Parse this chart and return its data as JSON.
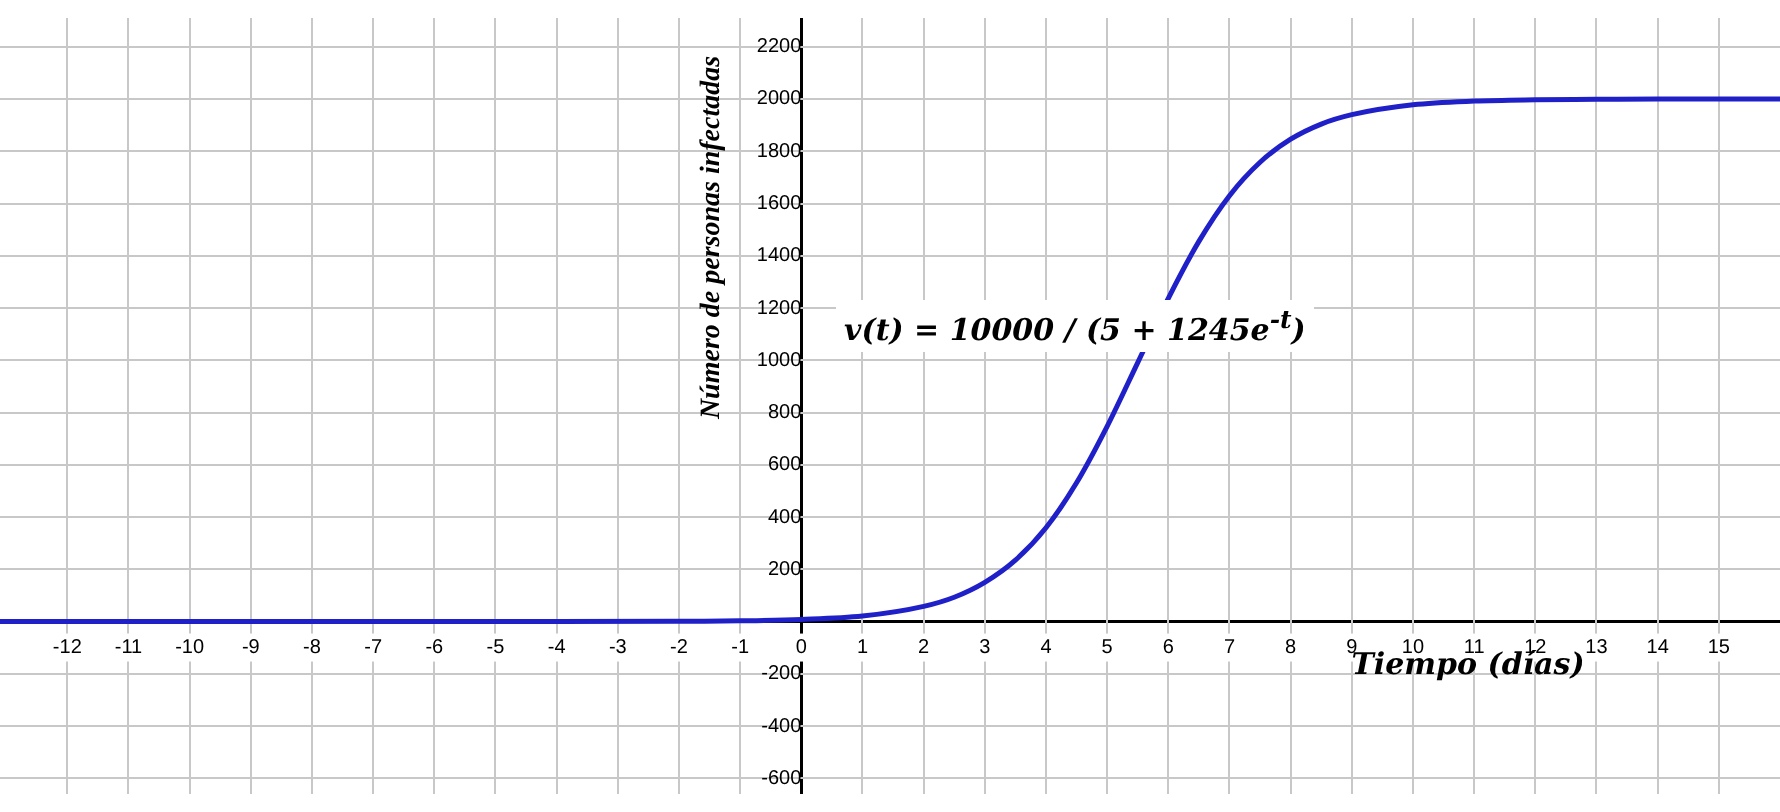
{
  "chart_data": {
    "type": "line",
    "xlabel": "Tiempo (días)",
    "ylabel": "Número de personas infectadas",
    "annotations": [
      "v(t) = 10000 / (5 + 1245e$^{-t}$)"
    ],
    "x": [
      -13.1,
      -10,
      -6,
      -4,
      -2,
      -1,
      0,
      1,
      2,
      2.5,
      3,
      3.5,
      4,
      4.5,
      5,
      5.5,
      6,
      6.5,
      7,
      7.5,
      8,
      8.5,
      9,
      10,
      11,
      12,
      13,
      14,
      16
    ],
    "series": [
      {
        "color": "#2020c8",
        "values": [
          0,
          0,
          0,
          0,
          1,
          3,
          8,
          21,
          58,
          93,
          150,
          235,
          359,
          531,
          747,
          991,
          1237,
          1455,
          1630,
          1758,
          1846,
          1904,
          1940,
          1978,
          1992,
          1997,
          1999,
          2000,
          2000
        ]
      }
    ],
    "xlim": [
      -13.1,
      16
    ],
    "ylim": [
      -660,
      2310
    ],
    "xticks": [
      -12,
      -11,
      -10,
      -9,
      -8,
      -7,
      -6,
      -5,
      -4,
      -3,
      -2,
      -1,
      0,
      1,
      2,
      3,
      4,
      5,
      6,
      7,
      8,
      9,
      10,
      11,
      12,
      13,
      14,
      15
    ],
    "yticks": [
      -600,
      -400,
      -200,
      200,
      400,
      600,
      800,
      1000,
      1200,
      1400,
      1600,
      1800,
      2000,
      2200
    ],
    "grid": true,
    "legend": false,
    "marker": "none",
    "line_style": "solid"
  }
}
